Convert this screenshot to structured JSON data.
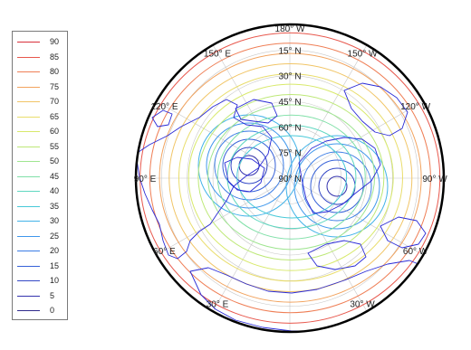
{
  "chart_data": {
    "type": "contour",
    "projection": "polar",
    "legend": {
      "position": "left",
      "levels": [
        {
          "label": "90",
          "color": "#d9303b"
        },
        {
          "label": "85",
          "color": "#e8574c"
        },
        {
          "label": "80",
          "color": "#ef7e55"
        },
        {
          "label": "75",
          "color": "#f2a35e"
        },
        {
          "label": "70",
          "color": "#f1c567"
        },
        {
          "label": "65",
          "color": "#e9dd6c"
        },
        {
          "label": "60",
          "color": "#d8e96b"
        },
        {
          "label": "55",
          "color": "#bde877"
        },
        {
          "label": "50",
          "color": "#9fe590"
        },
        {
          "label": "45",
          "color": "#80e0a8"
        },
        {
          "label": "40",
          "color": "#5fd7c0"
        },
        {
          "label": "35",
          "color": "#47c9d8"
        },
        {
          "label": "30",
          "color": "#42b3e8"
        },
        {
          "label": "25",
          "color": "#3f97ec"
        },
        {
          "label": "20",
          "color": "#3a7ce5"
        },
        {
          "label": "15",
          "color": "#3661d8"
        },
        {
          "label": "10",
          "color": "#3448c6"
        },
        {
          "label": "5",
          "color": "#3433ae"
        },
        {
          "label": "0",
          "color": "#2f2a8c"
        }
      ]
    },
    "latitude_labels": [
      "15° N",
      "30° N",
      "45° N",
      "60° N",
      "75° N",
      "90° N"
    ],
    "longitude_labels": [
      {
        "text": "150° W",
        "angle": -150
      },
      {
        "text": "150° E",
        "angle": 150
      },
      {
        "text": "120° W",
        "angle": -120
      },
      {
        "text": "120° E",
        "angle": 120
      },
      {
        "text": "90° W",
        "angle": -90
      },
      {
        "text": "90° E",
        "angle": 90
      },
      {
        "text": "60° W",
        "angle": -60
      },
      {
        "text": "60° E",
        "angle": 60
      },
      {
        "text": "30° W",
        "angle": -30
      },
      {
        "text": "30° E",
        "angle": 30
      }
    ],
    "top_label": "180° W",
    "coastline_color": "#2a2ad6",
    "graticule_color": "#c8c8c8",
    "frame_color": "#000000"
  }
}
